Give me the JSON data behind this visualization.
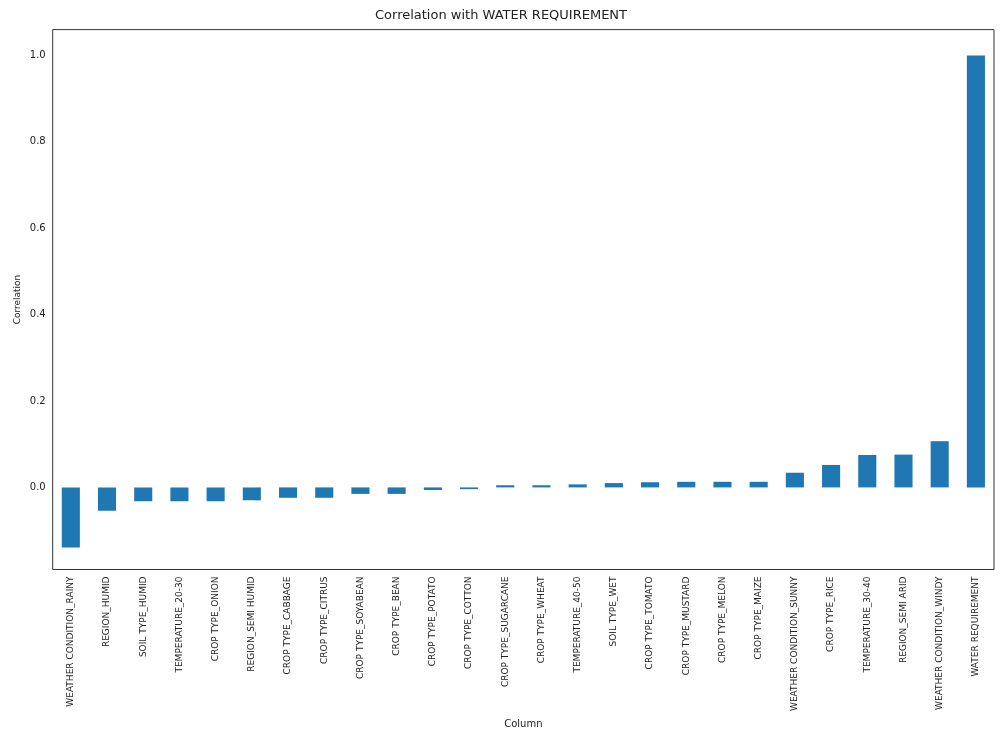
{
  "chart_data": {
    "type": "bar",
    "title": "Correlation with WATER REQUIREMENT",
    "xlabel": "Column",
    "ylabel": "Correlation",
    "categories": [
      "WEATHER CONDITION_RAINY",
      "REGION_HUMID",
      "SOIL TYPE_HUMID",
      "TEMPERATURE_20-30",
      "CROP TYPE_ONION",
      "REGION_SEMI HUMID",
      "CROP TYPE_CABBAGE",
      "CROP TYPE_CITRUS",
      "CROP TYPE_SOYABEAN",
      "CROP TYPE_BEAN",
      "CROP TYPE_POTATO",
      "CROP TYPE_COTTON",
      "CROP TYPE_SUGARCANE",
      "CROP TYPE_WHEAT",
      "TEMPERATURE_40-50",
      "SOIL TYPE_WET",
      "CROP TYPE_TOMATO",
      "CROP TYPE_MUSTARD",
      "CROP TYPE_MELON",
      "CROP TYPE_MAIZE",
      "WEATHER CONDITION_SUNNY",
      "CROP TYPE_RICE",
      "TEMPERATURE_30-40",
      "REGION_SEMI ARID",
      "WEATHER CONDITION_WINDY",
      "WATER REQUIREMENT"
    ],
    "values": [
      -0.139,
      -0.054,
      -0.032,
      -0.032,
      -0.032,
      -0.03,
      -0.024,
      -0.024,
      -0.015,
      -0.015,
      -0.006,
      -0.004,
      0.005,
      0.005,
      0.007,
      0.01,
      0.012,
      0.013,
      0.013,
      0.013,
      0.034,
      0.052,
      0.075,
      0.076,
      0.107,
      1.0
    ],
    "color": "#1f77b4",
    "ylim": [
      -0.19,
      1.06
    ],
    "yticks": [
      {
        "value": 0,
        "label": "0.0"
      },
      {
        "value": 0.2,
        "label": "0.2"
      },
      {
        "value": 0.4,
        "label": "0.4"
      },
      {
        "value": 0.6,
        "label": "0.6"
      },
      {
        "value": 0.8,
        "label": "0.8"
      },
      {
        "value": 1,
        "label": "1.0"
      }
    ],
    "grid": false,
    "legend": false
  }
}
